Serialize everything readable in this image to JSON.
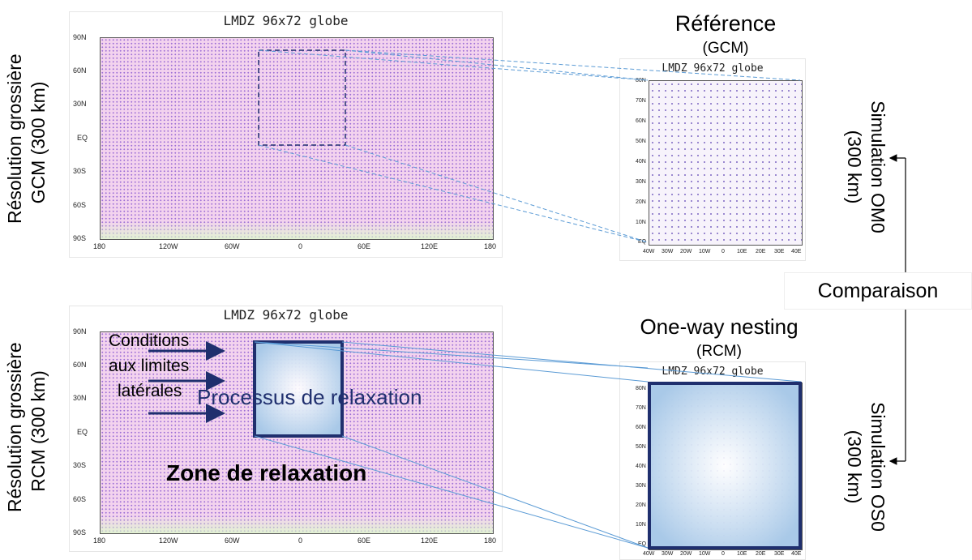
{
  "left_labels": {
    "top": [
      "Résolution grossière",
      "GCM (300 km)"
    ],
    "bottom": [
      "Résolution grossière",
      "RCM (300 km)"
    ]
  },
  "maps": {
    "global_title": "LMDZ 96x72 globe",
    "global_lat_ticks": [
      "90N",
      "60N",
      "30N",
      "EQ",
      "30S",
      "60S",
      "90S"
    ],
    "global_lon_ticks": [
      "180",
      "120W",
      "60W",
      "0",
      "60E",
      "120E",
      "180"
    ],
    "zoom_title": "LMDZ 96x72 globe",
    "zoom_lat_ticks": [
      "80N",
      "70N",
      "60N",
      "50N",
      "40N",
      "30N",
      "20N",
      "10N",
      "EQ"
    ],
    "zoom_lon_ticks": [
      "40W",
      "30W",
      "20W",
      "10W",
      "0",
      "10E",
      "20E",
      "30E",
      "40E"
    ]
  },
  "top_right": {
    "title": "Référence",
    "subtitle": "(GCM)"
  },
  "bottom_right": {
    "title": "One-way nesting",
    "subtitle": "(RCM)"
  },
  "right_labels": {
    "top": [
      "Simulation OM0",
      "(300 km)"
    ],
    "bottom": [
      "Simulation OS0",
      "(300 km)"
    ],
    "middle": "Comparaison"
  },
  "annotations": {
    "conditions": [
      "Conditions",
      "aux limites",
      "latérales"
    ],
    "processus": "Processus de relaxation",
    "zone": "Zone de relaxation"
  },
  "colors": {
    "navy": "#1f2f6e",
    "link": "#5b9bd5",
    "plot_bg": "#f3d3ee",
    "relax": "#c6dcf1"
  }
}
